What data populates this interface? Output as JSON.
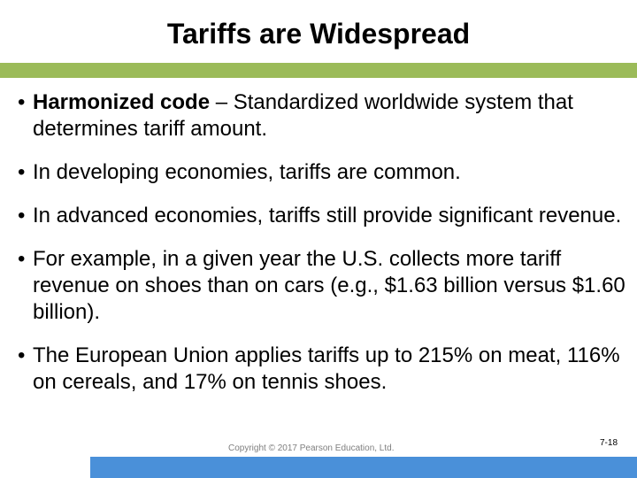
{
  "slide": {
    "title": "Tariffs are Widespread",
    "bullets": [
      {
        "term": "Harmonized code",
        "text": " – Standardized worldwide system that determines tariff amount."
      },
      {
        "term": "",
        "text": "In developing economies, tariffs are common."
      },
      {
        "term": "",
        "text": "In advanced economies, tariffs still provide significant revenue."
      },
      {
        "term": "",
        "text": "For example, in a given year the U.S. collects more tariff revenue on shoes than on cars (e.g., $1.63 billion versus $1.60 billion)."
      },
      {
        "term": "",
        "text": "The European Union applies tariffs up to 215% on meat, 116% on cereals, and 17% on tennis shoes."
      }
    ],
    "bullet_glyph": "•",
    "copyright": "Copyright © 2017 Pearson Education, Ltd.",
    "page_number": "7-18"
  },
  "colors": {
    "title_bar": "#9bbb59",
    "bottom_bar": "#4a90d9"
  }
}
